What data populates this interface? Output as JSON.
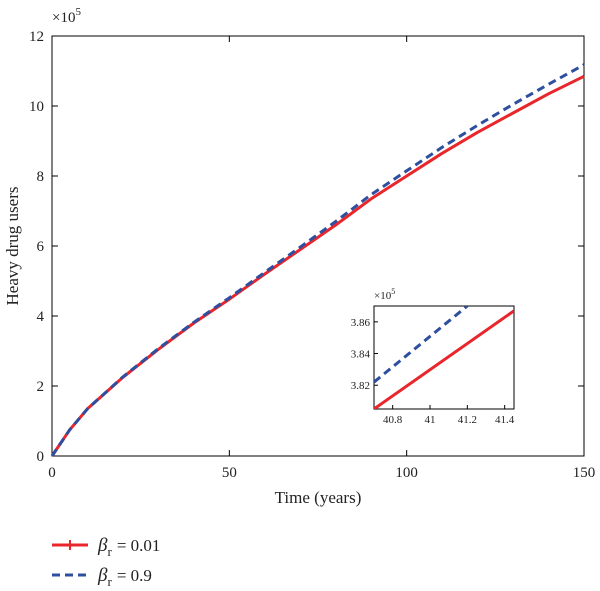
{
  "chart_data": {
    "type": "line",
    "xlabel": "Time (years)",
    "ylabel": "Heavy drug users",
    "y_multiplier_label": "×10",
    "y_multiplier_exp": "5",
    "xlim": [
      0,
      150
    ],
    "ylim": [
      0,
      12
    ],
    "xticks": [
      0,
      50,
      100,
      150
    ],
    "yticks": [
      0,
      2,
      4,
      6,
      8,
      10,
      12
    ],
    "grid": false,
    "legend_position": "bottom-left",
    "series": [
      {
        "name_symbol": "β",
        "name_sub": "r",
        "name_value": "= 0.01",
        "style": "solid",
        "color": "#e8262b",
        "x": [
          0,
          5,
          10,
          20,
          30,
          40,
          50,
          60,
          70,
          80,
          90,
          100,
          110,
          120,
          130,
          140,
          150
        ],
        "y": [
          0,
          0.75,
          1.35,
          2.25,
          3.05,
          3.8,
          4.48,
          5.2,
          5.9,
          6.6,
          7.35,
          8.0,
          8.65,
          9.25,
          9.8,
          10.35,
          10.85
        ]
      },
      {
        "name_symbol": "β",
        "name_sub": "r",
        "name_value": "= 0.9",
        "style": "dashed",
        "color": "#2e4fa0",
        "x": [
          0,
          5,
          10,
          20,
          30,
          40,
          50,
          60,
          70,
          80,
          90,
          100,
          110,
          120,
          130,
          140,
          150
        ],
        "y": [
          0,
          0.75,
          1.35,
          2.26,
          3.07,
          3.82,
          4.52,
          5.25,
          5.97,
          6.7,
          7.47,
          8.15,
          8.82,
          9.45,
          10.05,
          10.62,
          11.18
        ]
      }
    ],
    "inset": {
      "xlim": [
        40.7,
        41.45
      ],
      "ylim": [
        3.805,
        3.87
      ],
      "xticks": [
        "40.8",
        "41",
        "41.2",
        "41.4"
      ],
      "xtick_values": [
        40.8,
        41.0,
        41.2,
        41.4
      ],
      "yticks": [
        "3.82",
        "3.84",
        "3.86"
      ],
      "ytick_values": [
        3.82,
        3.84,
        3.86
      ],
      "y_multiplier_label": "×10",
      "y_multiplier_exp": "5",
      "series": [
        {
          "style": "solid",
          "color": "#e8262b",
          "x": [
            40.7,
            41.45
          ],
          "y": [
            3.805,
            3.867
          ]
        },
        {
          "style": "dashed",
          "color": "#2e4fa0",
          "x": [
            40.7,
            41.2
          ],
          "y": [
            3.822,
            3.87
          ]
        }
      ]
    }
  }
}
